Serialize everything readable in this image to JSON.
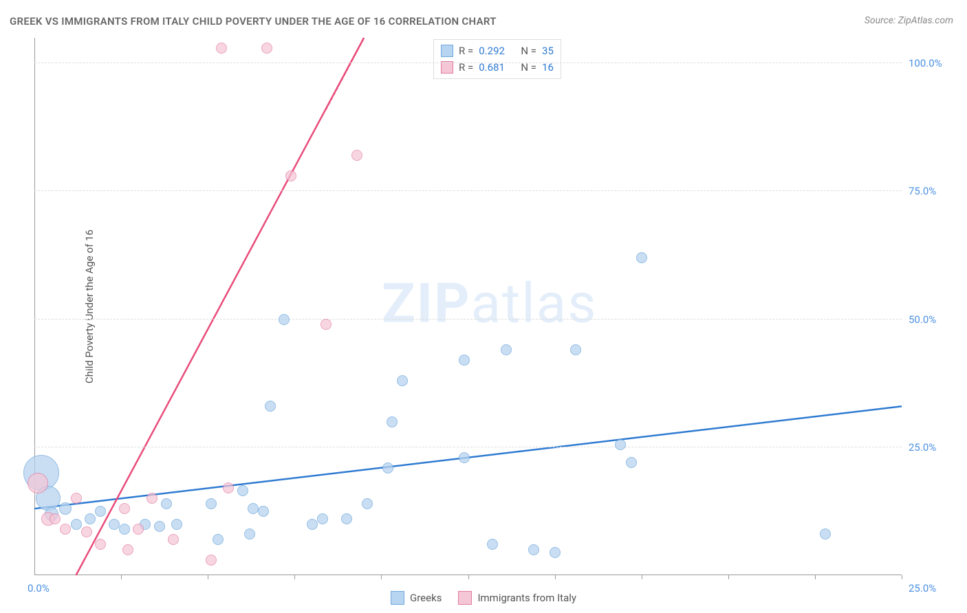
{
  "chart": {
    "type": "scatter",
    "title": "GREEK VS IMMIGRANTS FROM ITALY CHILD POVERTY UNDER THE AGE OF 16 CORRELATION CHART",
    "source_label": "Source:",
    "source_name": "ZipAtlas.com",
    "ylabel": "Child Poverty Under the Age of 16",
    "watermark_a": "ZIP",
    "watermark_b": "atlas",
    "background_color": "#ffffff",
    "grid_color": "#dddddd",
    "axis_color": "#999999",
    "xlim": [
      0,
      25
    ],
    "ylim": [
      0,
      105
    ],
    "x_origin_label": "0.0%",
    "x_max_label": "25.0%",
    "x_tick_positions_pct": [
      10,
      20,
      30,
      40,
      50,
      60,
      70,
      80,
      90,
      100
    ],
    "y_gridlines": [
      {
        "value": 25,
        "label": "25.0%"
      },
      {
        "value": 50,
        "label": "50.0%"
      },
      {
        "value": 75,
        "label": "75.0%"
      },
      {
        "value": 100,
        "label": "100.0%"
      }
    ],
    "series": [
      {
        "name": "Greeks",
        "fill": "#b7d4f0",
        "stroke": "#6fa8dc",
        "marker_opacity": 0.75,
        "line_color": "#2e7ad1",
        "line_width": 2.5,
        "R": "0.292",
        "N": "35",
        "trend": {
          "x1": 0,
          "y1": 13,
          "x2": 25,
          "y2": 33
        },
        "points": [
          {
            "x": 0.2,
            "y": 20,
            "r": 26
          },
          {
            "x": 0.4,
            "y": 15,
            "r": 18
          },
          {
            "x": 0.5,
            "y": 12,
            "r": 10
          },
          {
            "x": 0.9,
            "y": 13,
            "r": 9
          },
          {
            "x": 1.2,
            "y": 10,
            "r": 8
          },
          {
            "x": 1.6,
            "y": 11,
            "r": 8
          },
          {
            "x": 1.9,
            "y": 12.5,
            "r": 8
          },
          {
            "x": 2.3,
            "y": 10,
            "r": 8
          },
          {
            "x": 2.6,
            "y": 9,
            "r": 8
          },
          {
            "x": 3.2,
            "y": 10,
            "r": 8
          },
          {
            "x": 3.6,
            "y": 9.5,
            "r": 8
          },
          {
            "x": 3.8,
            "y": 14,
            "r": 8
          },
          {
            "x": 4.1,
            "y": 10,
            "r": 8
          },
          {
            "x": 5.1,
            "y": 14,
            "r": 8
          },
          {
            "x": 5.3,
            "y": 7,
            "r": 8
          },
          {
            "x": 6.2,
            "y": 8,
            "r": 8
          },
          {
            "x": 6.0,
            "y": 16.5,
            "r": 8
          },
          {
            "x": 6.3,
            "y": 13,
            "r": 8
          },
          {
            "x": 6.6,
            "y": 12.5,
            "r": 8
          },
          {
            "x": 6.8,
            "y": 33,
            "r": 8
          },
          {
            "x": 7.2,
            "y": 50,
            "r": 8
          },
          {
            "x": 8.0,
            "y": 10,
            "r": 8
          },
          {
            "x": 8.3,
            "y": 11,
            "r": 8
          },
          {
            "x": 9.0,
            "y": 11,
            "r": 8
          },
          {
            "x": 9.6,
            "y": 14,
            "r": 8
          },
          {
            "x": 10.3,
            "y": 30,
            "r": 8
          },
          {
            "x": 10.2,
            "y": 21,
            "r": 8
          },
          {
            "x": 10.6,
            "y": 38,
            "r": 8
          },
          {
            "x": 12.4,
            "y": 42,
            "r": 8
          },
          {
            "x": 12.4,
            "y": 23,
            "r": 8
          },
          {
            "x": 13.2,
            "y": 6,
            "r": 8
          },
          {
            "x": 13.6,
            "y": 44,
            "r": 8
          },
          {
            "x": 14.4,
            "y": 5,
            "r": 8
          },
          {
            "x": 15.0,
            "y": 4.5,
            "r": 8
          },
          {
            "x": 15.6,
            "y": 44,
            "r": 8
          },
          {
            "x": 16.9,
            "y": 25.5,
            "r": 8
          },
          {
            "x": 17.2,
            "y": 22,
            "r": 8
          },
          {
            "x": 17.5,
            "y": 62,
            "r": 8
          },
          {
            "x": 22.8,
            "y": 8,
            "r": 8
          }
        ]
      },
      {
        "name": "Immigrants from Italy",
        "fill": "#f5c6d6",
        "stroke": "#e27aa0",
        "marker_opacity": 0.7,
        "line_color": "#e94b7a",
        "line_width": 2.5,
        "R": "0.681",
        "N": "16",
        "trend": {
          "x1": 1.2,
          "y1": 0,
          "x2": 9.5,
          "y2": 105
        },
        "points": [
          {
            "x": 0.1,
            "y": 18,
            "r": 15
          },
          {
            "x": 0.4,
            "y": 11,
            "r": 10
          },
          {
            "x": 0.6,
            "y": 11,
            "r": 8
          },
          {
            "x": 0.9,
            "y": 9,
            "r": 8
          },
          {
            "x": 1.2,
            "y": 15,
            "r": 8
          },
          {
            "x": 1.5,
            "y": 8.5,
            "r": 8
          },
          {
            "x": 1.9,
            "y": 6,
            "r": 8
          },
          {
            "x": 2.6,
            "y": 13,
            "r": 8
          },
          {
            "x": 2.7,
            "y": 5,
            "r": 8
          },
          {
            "x": 3.0,
            "y": 9,
            "r": 8
          },
          {
            "x": 3.4,
            "y": 15,
            "r": 8
          },
          {
            "x": 4.0,
            "y": 7,
            "r": 8
          },
          {
            "x": 5.1,
            "y": 3,
            "r": 8
          },
          {
            "x": 5.6,
            "y": 17,
            "r": 8
          },
          {
            "x": 5.4,
            "y": 103,
            "r": 8
          },
          {
            "x": 6.7,
            "y": 103,
            "r": 8
          },
          {
            "x": 7.4,
            "y": 78,
            "r": 8
          },
          {
            "x": 8.4,
            "y": 49,
            "r": 8
          },
          {
            "x": 9.3,
            "y": 82,
            "r": 8
          }
        ]
      }
    ],
    "stats_labels": {
      "R": "R =",
      "N": "N ="
    }
  }
}
